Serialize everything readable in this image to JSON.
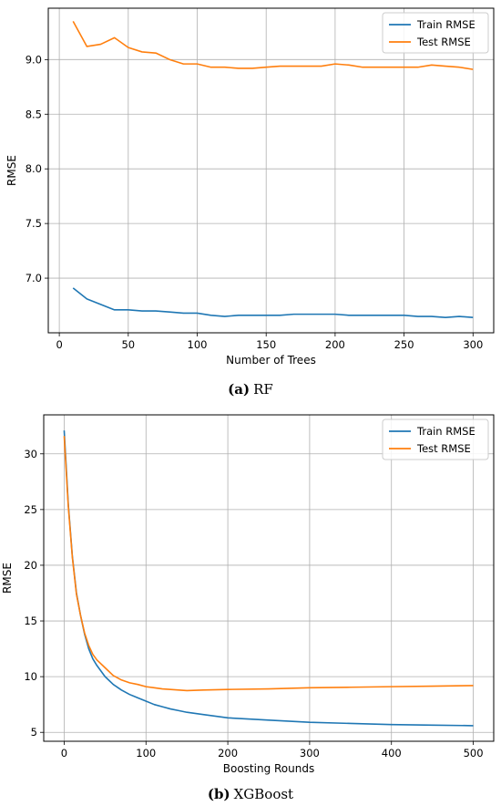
{
  "colors": {
    "train": "#1f77b4",
    "test": "#ff7f0e",
    "grid": "#b0b0b0"
  },
  "captions": [
    {
      "tag": "(a)",
      "text": "RF"
    },
    {
      "tag": "(b)",
      "text": "XGBoost"
    }
  ],
  "chart_data": [
    {
      "type": "line",
      "xlabel": "Number of Trees",
      "ylabel": "RMSE",
      "xlim": [
        -8,
        315
      ],
      "ylim": [
        6.5,
        9.47
      ],
      "xticks": [
        0,
        50,
        100,
        150,
        200,
        250,
        300
      ],
      "yticks": [
        7.0,
        7.5,
        8.0,
        8.5,
        9.0
      ],
      "ytick_labels": [
        "7.0",
        "7.5",
        "8.0",
        "8.5",
        "9.0"
      ],
      "grid": true,
      "legend": "upper right",
      "series": [
        {
          "name": "Train RMSE",
          "color_key": "train",
          "x": [
            10,
            20,
            30,
            40,
            50,
            60,
            70,
            80,
            90,
            100,
            110,
            120,
            130,
            140,
            150,
            160,
            170,
            180,
            190,
            200,
            210,
            220,
            230,
            240,
            250,
            260,
            270,
            280,
            290,
            300
          ],
          "y": [
            6.91,
            6.81,
            6.76,
            6.71,
            6.71,
            6.7,
            6.7,
            6.69,
            6.68,
            6.68,
            6.66,
            6.65,
            6.66,
            6.66,
            6.66,
            6.66,
            6.67,
            6.67,
            6.67,
            6.67,
            6.66,
            6.66,
            6.66,
            6.66,
            6.66,
            6.65,
            6.65,
            6.64,
            6.65,
            6.64
          ]
        },
        {
          "name": "Test RMSE",
          "color_key": "test",
          "x": [
            10,
            20,
            30,
            40,
            50,
            60,
            70,
            80,
            90,
            100,
            110,
            120,
            130,
            140,
            150,
            160,
            170,
            180,
            190,
            200,
            210,
            220,
            230,
            240,
            250,
            260,
            270,
            280,
            290,
            300
          ],
          "y": [
            9.35,
            9.12,
            9.14,
            9.2,
            9.11,
            9.07,
            9.06,
            9.0,
            8.96,
            8.96,
            8.93,
            8.93,
            8.92,
            8.92,
            8.93,
            8.94,
            8.94,
            8.94,
            8.94,
            8.96,
            8.95,
            8.93,
            8.93,
            8.93,
            8.93,
            8.93,
            8.95,
            8.94,
            8.93,
            8.91
          ]
        }
      ]
    },
    {
      "type": "line",
      "xlabel": "Boosting Rounds",
      "ylabel": "RMSE",
      "xlim": [
        -25,
        525
      ],
      "ylim": [
        4.2,
        33.5
      ],
      "xticks": [
        0,
        100,
        200,
        300,
        400,
        500
      ],
      "yticks": [
        5,
        10,
        15,
        20,
        25,
        30
      ],
      "ytick_labels": [
        "5",
        "10",
        "15",
        "20",
        "25",
        "30"
      ],
      "grid": true,
      "legend": "upper right",
      "series": [
        {
          "name": "Train RMSE",
          "color_key": "train",
          "x": [
            0,
            5,
            10,
            15,
            20,
            25,
            30,
            35,
            40,
            50,
            60,
            70,
            80,
            90,
            100,
            110,
            120,
            130,
            140,
            150,
            170,
            200,
            250,
            300,
            350,
            400,
            450,
            500
          ],
          "y": [
            32.1,
            25.5,
            20.8,
            17.5,
            15.5,
            13.8,
            12.5,
            11.6,
            11.0,
            10.0,
            9.3,
            8.8,
            8.4,
            8.1,
            7.8,
            7.5,
            7.3,
            7.1,
            6.95,
            6.8,
            6.6,
            6.3,
            6.1,
            5.9,
            5.8,
            5.7,
            5.65,
            5.6
          ]
        },
        {
          "name": "Test RMSE",
          "color_key": "test",
          "x": [
            0,
            5,
            10,
            15,
            20,
            25,
            30,
            35,
            40,
            50,
            60,
            70,
            80,
            90,
            100,
            110,
            120,
            130,
            140,
            150,
            170,
            200,
            250,
            300,
            350,
            400,
            450,
            500
          ],
          "y": [
            31.6,
            25.3,
            20.7,
            17.4,
            15.5,
            13.9,
            12.8,
            12.0,
            11.5,
            10.8,
            10.1,
            9.7,
            9.45,
            9.3,
            9.1,
            9.0,
            8.9,
            8.85,
            8.8,
            8.75,
            8.8,
            8.85,
            8.9,
            9.0,
            9.05,
            9.1,
            9.15,
            9.2
          ]
        }
      ]
    }
  ]
}
